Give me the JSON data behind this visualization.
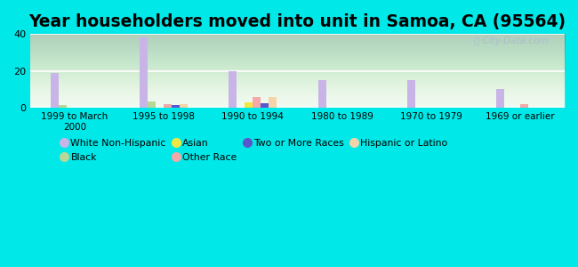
{
  "title": "Year householders moved into unit in Samoa, CA (95564)",
  "categories": [
    "1999 to March\n2000",
    "1995 to 1998",
    "1990 to 1994",
    "1980 to 1989",
    "1970 to 1979",
    "1969 or earlier"
  ],
  "series": {
    "White Non-Hispanic": [
      19,
      38,
      20,
      15,
      15,
      10
    ],
    "Black": [
      1.5,
      3.5,
      0,
      0,
      0,
      0
    ],
    "Asian": [
      0,
      0,
      3,
      0,
      0,
      0
    ],
    "Other Race": [
      0,
      2,
      6,
      0,
      0,
      2
    ],
    "Two or More Races": [
      0,
      1.5,
      2.5,
      0,
      0,
      0
    ],
    "Hispanic or Latino": [
      0,
      2,
      6,
      0,
      0,
      0
    ]
  },
  "colors": {
    "White Non-Hispanic": "#c9b4e8",
    "Black": "#b8d898",
    "Asian": "#f0e840",
    "Other Race": "#f4a8a8",
    "Two or More Races": "#5858cc",
    "Hispanic or Latino": "#f4d4a8"
  },
  "ylim": [
    0,
    40
  ],
  "yticks": [
    0,
    20,
    40
  ],
  "outer_bg": "#00e8e8",
  "title_fontsize": 13.5,
  "bar_width": 0.09
}
